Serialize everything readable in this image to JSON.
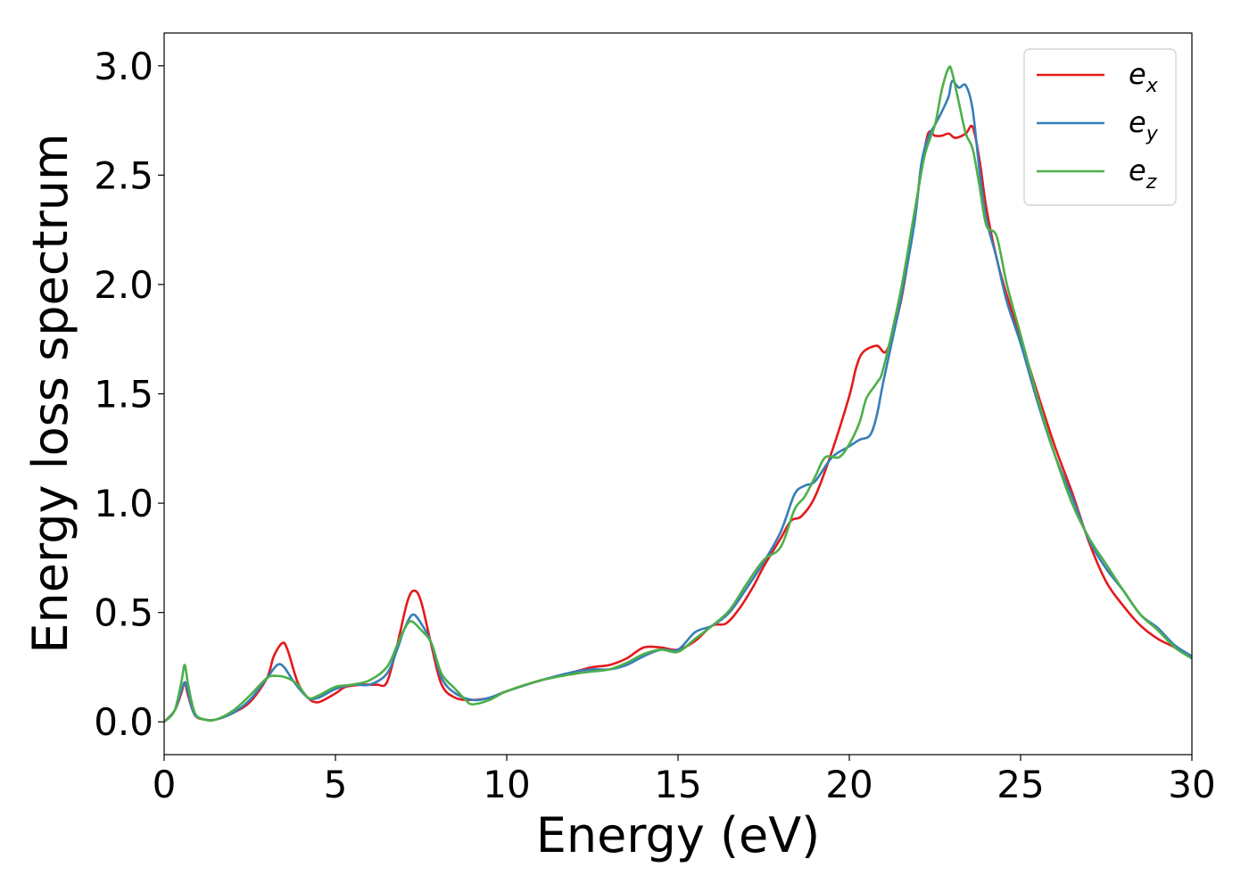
{
  "chart_data": {
    "type": "line",
    "xlabel": "Energy (eV)",
    "ylabel": "Energy loss spectrum",
    "xlim": [
      0,
      30
    ],
    "ylim": [
      -0.15,
      3.15
    ],
    "x_ticks": [
      "0",
      "5",
      "10",
      "15",
      "20",
      "25",
      "30"
    ],
    "y_ticks": [
      "0.0",
      "0.5",
      "1.0",
      "1.5",
      "2.0",
      "2.5",
      "3.0"
    ],
    "grid": false,
    "legend_position": "top-right",
    "series": [
      {
        "name": "e_x",
        "label_base": "e",
        "label_sub": "x",
        "color": "#e41a1c",
        "points": [
          [
            0,
            0
          ],
          [
            0.3,
            0.05
          ],
          [
            0.5,
            0.13
          ],
          [
            0.6,
            0.18
          ],
          [
            0.7,
            0.12
          ],
          [
            0.9,
            0.03
          ],
          [
            1.2,
            0.01
          ],
          [
            1.5,
            0.01
          ],
          [
            2.0,
            0.04
          ],
          [
            2.5,
            0.09
          ],
          [
            3.0,
            0.2
          ],
          [
            3.2,
            0.3
          ],
          [
            3.45,
            0.36
          ],
          [
            3.6,
            0.33
          ],
          [
            3.9,
            0.18
          ],
          [
            4.2,
            0.11
          ],
          [
            4.5,
            0.09
          ],
          [
            5.0,
            0.13
          ],
          [
            5.3,
            0.16
          ],
          [
            5.8,
            0.17
          ],
          [
            6.2,
            0.17
          ],
          [
            6.5,
            0.18
          ],
          [
            6.8,
            0.35
          ],
          [
            7.1,
            0.55
          ],
          [
            7.3,
            0.6
          ],
          [
            7.5,
            0.55
          ],
          [
            7.8,
            0.35
          ],
          [
            8.1,
            0.17
          ],
          [
            8.5,
            0.11
          ],
          [
            9.0,
            0.1
          ],
          [
            9.5,
            0.11
          ],
          [
            10,
            0.14
          ],
          [
            11,
            0.19
          ],
          [
            12,
            0.23
          ],
          [
            12.5,
            0.25
          ],
          [
            13,
            0.26
          ],
          [
            13.5,
            0.29
          ],
          [
            14,
            0.34
          ],
          [
            14.5,
            0.34
          ],
          [
            15,
            0.33
          ],
          [
            15.5,
            0.37
          ],
          [
            16,
            0.44
          ],
          [
            16.4,
            0.45
          ],
          [
            16.8,
            0.52
          ],
          [
            17.2,
            0.62
          ],
          [
            17.5,
            0.71
          ],
          [
            18,
            0.84
          ],
          [
            18.3,
            0.92
          ],
          [
            18.6,
            0.94
          ],
          [
            19.0,
            1.03
          ],
          [
            19.5,
            1.24
          ],
          [
            20.0,
            1.49
          ],
          [
            20.2,
            1.62
          ],
          [
            20.4,
            1.69
          ],
          [
            20.8,
            1.72
          ],
          [
            21.1,
            1.7
          ],
          [
            21.5,
            1.92
          ],
          [
            21.8,
            2.2
          ],
          [
            22.1,
            2.52
          ],
          [
            22.3,
            2.69
          ],
          [
            22.5,
            2.68
          ],
          [
            22.7,
            2.68
          ],
          [
            22.9,
            2.69
          ],
          [
            23.1,
            2.67
          ],
          [
            23.4,
            2.69
          ],
          [
            23.6,
            2.72
          ],
          [
            23.8,
            2.57
          ],
          [
            24.0,
            2.35
          ],
          [
            24.3,
            2.12
          ],
          [
            24.6,
            1.95
          ],
          [
            25.0,
            1.75
          ],
          [
            25.5,
            1.5
          ],
          [
            26.0,
            1.26
          ],
          [
            26.5,
            1.05
          ],
          [
            27.0,
            0.82
          ],
          [
            27.5,
            0.64
          ],
          [
            28.0,
            0.53
          ],
          [
            28.5,
            0.44
          ],
          [
            29.0,
            0.38
          ],
          [
            29.5,
            0.34
          ],
          [
            30,
            0.29
          ]
        ]
      },
      {
        "name": "e_y",
        "label_base": "e",
        "label_sub": "y",
        "color": "#377eb8",
        "points": [
          [
            0,
            0
          ],
          [
            0.3,
            0.05
          ],
          [
            0.5,
            0.14
          ],
          [
            0.62,
            0.18
          ],
          [
            0.75,
            0.1
          ],
          [
            0.9,
            0.03
          ],
          [
            1.2,
            0.01
          ],
          [
            1.5,
            0.01
          ],
          [
            2.0,
            0.04
          ],
          [
            2.5,
            0.1
          ],
          [
            3.0,
            0.2
          ],
          [
            3.3,
            0.26
          ],
          [
            3.5,
            0.25
          ],
          [
            3.8,
            0.18
          ],
          [
            4.2,
            0.11
          ],
          [
            4.5,
            0.11
          ],
          [
            5.0,
            0.15
          ],
          [
            5.5,
            0.17
          ],
          [
            6.0,
            0.17
          ],
          [
            6.5,
            0.22
          ],
          [
            6.8,
            0.33
          ],
          [
            7.0,
            0.42
          ],
          [
            7.25,
            0.49
          ],
          [
            7.5,
            0.45
          ],
          [
            7.8,
            0.36
          ],
          [
            8.1,
            0.2
          ],
          [
            8.5,
            0.13
          ],
          [
            9.0,
            0.1
          ],
          [
            9.5,
            0.11
          ],
          [
            10,
            0.14
          ],
          [
            11,
            0.19
          ],
          [
            12,
            0.23
          ],
          [
            12.5,
            0.24
          ],
          [
            13,
            0.24
          ],
          [
            13.5,
            0.26
          ],
          [
            14,
            0.3
          ],
          [
            14.5,
            0.33
          ],
          [
            15,
            0.33
          ],
          [
            15.5,
            0.41
          ],
          [
            16.0,
            0.44
          ],
          [
            16.5,
            0.5
          ],
          [
            17.0,
            0.61
          ],
          [
            17.5,
            0.73
          ],
          [
            18.0,
            0.87
          ],
          [
            18.4,
            1.04
          ],
          [
            18.7,
            1.08
          ],
          [
            19.0,
            1.1
          ],
          [
            19.5,
            1.21
          ],
          [
            20.0,
            1.26
          ],
          [
            20.3,
            1.29
          ],
          [
            20.6,
            1.31
          ],
          [
            20.8,
            1.4
          ],
          [
            21.0,
            1.56
          ],
          [
            21.5,
            1.93
          ],
          [
            21.9,
            2.28
          ],
          [
            22.1,
            2.55
          ],
          [
            22.3,
            2.67
          ],
          [
            22.5,
            2.73
          ],
          [
            22.7,
            2.79
          ],
          [
            22.9,
            2.86
          ],
          [
            23.0,
            2.93
          ],
          [
            23.2,
            2.9
          ],
          [
            23.4,
            2.91
          ],
          [
            23.6,
            2.8
          ],
          [
            23.8,
            2.52
          ],
          [
            24.0,
            2.3
          ],
          [
            24.3,
            2.12
          ],
          [
            24.6,
            1.92
          ],
          [
            25.0,
            1.73
          ],
          [
            25.5,
            1.46
          ],
          [
            26.0,
            1.22
          ],
          [
            26.5,
            1.03
          ],
          [
            27.0,
            0.83
          ],
          [
            27.5,
            0.7
          ],
          [
            28.0,
            0.6
          ],
          [
            28.5,
            0.49
          ],
          [
            29.0,
            0.43
          ],
          [
            29.5,
            0.35
          ],
          [
            30,
            0.3
          ]
        ]
      },
      {
        "name": "e_z",
        "label_base": "e",
        "label_sub": "z",
        "color": "#4daf4a",
        "points": [
          [
            0,
            0
          ],
          [
            0.3,
            0.05
          ],
          [
            0.5,
            0.18
          ],
          [
            0.6,
            0.26
          ],
          [
            0.7,
            0.17
          ],
          [
            0.9,
            0.04
          ],
          [
            1.2,
            0.01
          ],
          [
            1.5,
            0.01
          ],
          [
            2.0,
            0.05
          ],
          [
            2.5,
            0.12
          ],
          [
            3.0,
            0.2
          ],
          [
            3.3,
            0.21
          ],
          [
            3.6,
            0.2
          ],
          [
            3.9,
            0.17
          ],
          [
            4.2,
            0.11
          ],
          [
            4.5,
            0.12
          ],
          [
            5.0,
            0.16
          ],
          [
            5.5,
            0.17
          ],
          [
            6.0,
            0.19
          ],
          [
            6.5,
            0.25
          ],
          [
            6.8,
            0.35
          ],
          [
            7.0,
            0.42
          ],
          [
            7.2,
            0.46
          ],
          [
            7.5,
            0.42
          ],
          [
            7.8,
            0.36
          ],
          [
            8.1,
            0.22
          ],
          [
            8.5,
            0.15
          ],
          [
            8.8,
            0.1
          ],
          [
            9.0,
            0.08
          ],
          [
            9.5,
            0.1
          ],
          [
            10,
            0.14
          ],
          [
            11,
            0.19
          ],
          [
            12,
            0.22
          ],
          [
            12.5,
            0.23
          ],
          [
            13,
            0.24
          ],
          [
            13.5,
            0.27
          ],
          [
            14,
            0.31
          ],
          [
            14.5,
            0.33
          ],
          [
            15,
            0.32
          ],
          [
            15.5,
            0.38
          ],
          [
            16.0,
            0.44
          ],
          [
            16.5,
            0.51
          ],
          [
            17.0,
            0.63
          ],
          [
            17.5,
            0.74
          ],
          [
            18.0,
            0.8
          ],
          [
            18.4,
            0.97
          ],
          [
            18.7,
            1.03
          ],
          [
            19.0,
            1.12
          ],
          [
            19.3,
            1.21
          ],
          [
            19.7,
            1.21
          ],
          [
            20.0,
            1.27
          ],
          [
            20.3,
            1.37
          ],
          [
            20.5,
            1.48
          ],
          [
            20.8,
            1.55
          ],
          [
            21.0,
            1.62
          ],
          [
            21.5,
            1.97
          ],
          [
            21.9,
            2.33
          ],
          [
            22.2,
            2.59
          ],
          [
            22.5,
            2.73
          ],
          [
            22.7,
            2.89
          ],
          [
            22.9,
            2.99
          ],
          [
            23.0,
            2.97
          ],
          [
            23.2,
            2.83
          ],
          [
            23.4,
            2.69
          ],
          [
            23.6,
            2.62
          ],
          [
            23.8,
            2.45
          ],
          [
            24.0,
            2.27
          ],
          [
            24.3,
            2.22
          ],
          [
            24.6,
            2.0
          ],
          [
            25.0,
            1.77
          ],
          [
            25.5,
            1.48
          ],
          [
            26.0,
            1.22
          ],
          [
            26.5,
            1.0
          ],
          [
            27.0,
            0.84
          ],
          [
            27.5,
            0.72
          ],
          [
            28.0,
            0.6
          ],
          [
            28.5,
            0.49
          ],
          [
            29.0,
            0.42
          ],
          [
            29.5,
            0.34
          ],
          [
            30,
            0.29
          ]
        ]
      }
    ]
  }
}
